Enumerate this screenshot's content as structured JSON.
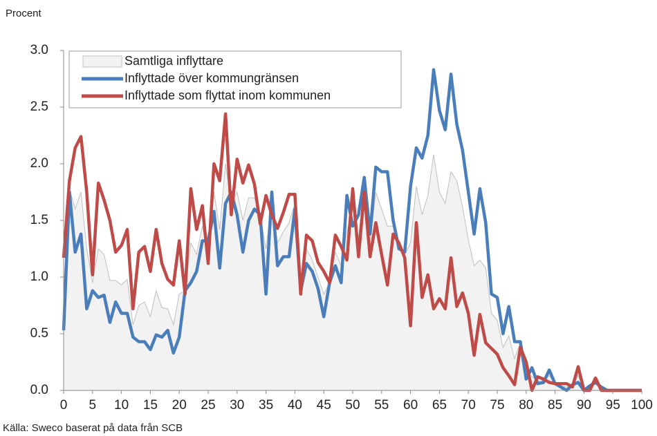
{
  "chart_data": {
    "type": "line",
    "y_label": "Procent",
    "source": "Källa: Sweco baserat på data från SCB",
    "x": [
      0,
      1,
      2,
      3,
      4,
      5,
      6,
      7,
      8,
      9,
      10,
      11,
      12,
      13,
      14,
      15,
      16,
      17,
      18,
      19,
      20,
      21,
      22,
      23,
      24,
      25,
      26,
      27,
      28,
      29,
      30,
      31,
      32,
      33,
      34,
      35,
      36,
      37,
      38,
      39,
      40,
      41,
      42,
      43,
      44,
      45,
      46,
      47,
      48,
      49,
      50,
      51,
      52,
      53,
      54,
      55,
      56,
      57,
      58,
      59,
      60,
      61,
      62,
      63,
      64,
      65,
      66,
      67,
      68,
      69,
      70,
      71,
      72,
      73,
      74,
      75,
      76,
      77,
      78,
      79,
      80,
      81,
      82,
      83,
      84,
      85,
      86,
      87,
      88,
      89,
      90,
      91,
      92,
      93,
      94,
      95,
      96,
      97,
      98,
      99,
      100
    ],
    "xlim": [
      0,
      100
    ],
    "xticks": [
      0,
      5,
      10,
      15,
      20,
      25,
      30,
      35,
      40,
      45,
      50,
      55,
      60,
      65,
      70,
      75,
      80,
      85,
      90,
      95,
      100
    ],
    "ylim": [
      0,
      3
    ],
    "yticks": [
      {
        "value": 0,
        "label": "0.0"
      },
      0.5,
      {
        "value": 1,
        "label": "1.0"
      },
      1.5,
      {
        "value": 2,
        "label": "2.0"
      },
      2.5,
      {
        "value": 3,
        "label": "3.0"
      }
    ],
    "grid": false,
    "legend": "upper-left",
    "series": [
      {
        "name": "Samtliga inflyttare",
        "style": "area",
        "color": "#f2f2f2",
        "edge": "#bfbfbf",
        "values": [
          0.9,
          1.78,
          1.6,
          1.75,
          1.25,
          0.95,
          1.25,
          1.2,
          0.97,
          0.97,
          0.93,
          0.98,
          0.58,
          0.75,
          0.78,
          0.65,
          0.88,
          0.73,
          0.72,
          0.58,
          0.85,
          0.88,
          1.3,
          1.2,
          1.45,
          1.2,
          1.75,
          1.42,
          2.0,
          1.65,
          1.75,
          1.5,
          1.7,
          1.7,
          1.55,
          1.25,
          1.68,
          1.3,
          1.4,
          1.48,
          1.65,
          0.87,
          1.25,
          1.15,
          1.0,
          0.85,
          0.95,
          1.22,
          1.1,
          1.4,
          1.6,
          1.35,
          1.8,
          1.3,
          1.75,
          1.6,
          1.45,
          1.45,
          1.27,
          1.2,
          1.3,
          1.8,
          1.55,
          1.72,
          2.08,
          1.75,
          1.65,
          1.93,
          1.85,
          1.62,
          1.33,
          1.1,
          1.15,
          1.08,
          0.68,
          0.62,
          0.38,
          0.48,
          0.28,
          0.42,
          0.18,
          0.12,
          0.08,
          0.09,
          0.13,
          0.06,
          0.04,
          0.03,
          0.04,
          0.13,
          0,
          0.02,
          0.09,
          0.02,
          0,
          0,
          0,
          0,
          0,
          0,
          0
        ]
      },
      {
        "name": "Inflyttade över kommungränsen",
        "style": "line",
        "color": "#4a7ebb",
        "values": [
          0.53,
          1.75,
          1.22,
          1.38,
          0.72,
          0.88,
          0.82,
          0.84,
          0.6,
          0.78,
          0.68,
          0.68,
          0.47,
          0.43,
          0.43,
          0.36,
          0.49,
          0.47,
          0.53,
          0.33,
          0.47,
          0.88,
          0.95,
          1.05,
          1.32,
          1.32,
          1.58,
          1.08,
          1.65,
          1.75,
          1.55,
          1.22,
          1.5,
          1.6,
          1.55,
          0.85,
          1.75,
          1.1,
          1.18,
          1.18,
          1.6,
          0.88,
          1.12,
          1.05,
          0.9,
          0.65,
          0.95,
          1.1,
          0.95,
          1.72,
          1.45,
          1.55,
          1.88,
          1.38,
          1.97,
          1.93,
          1.93,
          1.5,
          1.25,
          1.22,
          1.8,
          2.14,
          2.05,
          2.25,
          2.83,
          2.47,
          2.3,
          2.79,
          2.35,
          2.12,
          1.75,
          1.38,
          1.78,
          1.48,
          0.85,
          0.82,
          0.5,
          0.74,
          0.43,
          0.43,
          0.1,
          0.2,
          0.06,
          0.07,
          0.18,
          0.06,
          0.03,
          0,
          0.05,
          0.07,
          0,
          0.04,
          0.07,
          0.03,
          0,
          0,
          0,
          0,
          0,
          0,
          0
        ]
      },
      {
        "name": "Inflyttade som flyttat inom kommunen",
        "style": "line",
        "color": "#be4b48",
        "values": [
          1.17,
          1.85,
          2.14,
          2.24,
          1.75,
          1.02,
          1.83,
          1.68,
          1.5,
          1.22,
          1.28,
          1.42,
          0.72,
          1.22,
          1.27,
          1.05,
          1.42,
          1.12,
          0.98,
          0.93,
          1.32,
          0.85,
          1.78,
          1.42,
          1.63,
          1.12,
          2.0,
          1.85,
          2.44,
          1.55,
          2.04,
          1.83,
          1.99,
          1.82,
          1.47,
          1.72,
          1.55,
          1.43,
          1.57,
          1.73,
          1.73,
          0.85,
          1.37,
          1.32,
          1.13,
          1.05,
          0.95,
          1.37,
          1.27,
          1.15,
          1.78,
          1.18,
          1.75,
          1.18,
          1.48,
          1.2,
          0.93,
          1.38,
          1.3,
          1.17,
          0.57,
          1.48,
          0.82,
          1.02,
          0.72,
          0.81,
          0.72,
          1.17,
          0.74,
          0.86,
          0.68,
          0.31,
          0.67,
          0.42,
          0.37,
          0.32,
          0.2,
          0.13,
          0.05,
          0.38,
          0.25,
          0,
          0.12,
          0.1,
          0.07,
          0.06,
          0.06,
          0.06,
          0.03,
          0.21,
          0,
          0,
          0.11,
          0,
          0,
          0,
          0,
          0,
          0,
          0,
          0
        ]
      }
    ]
  }
}
